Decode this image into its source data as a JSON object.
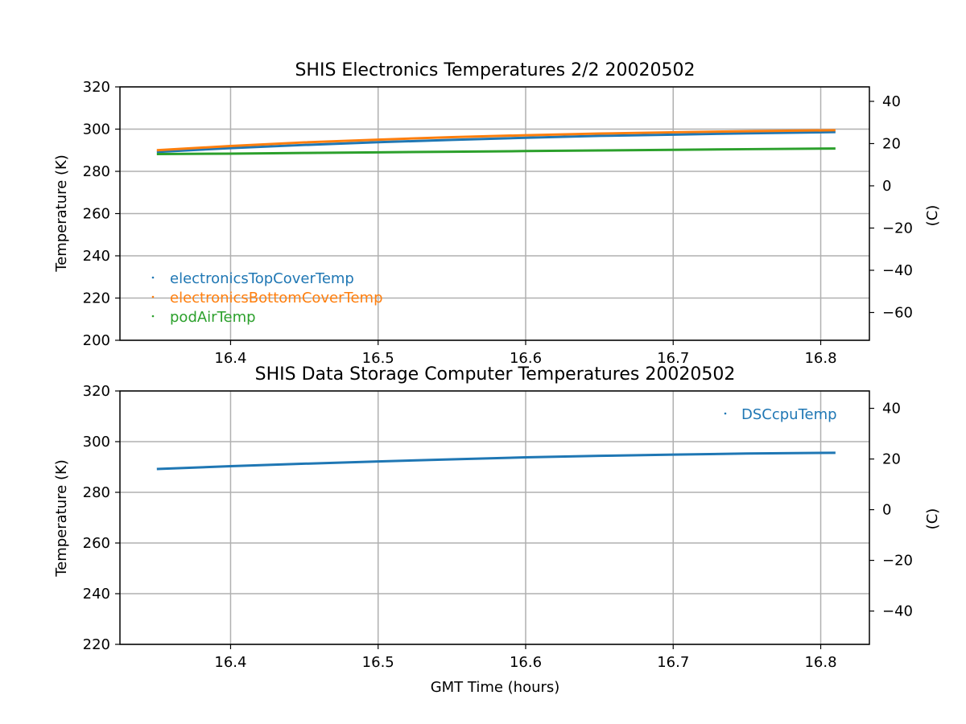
{
  "chart_data": [
    {
      "type": "line",
      "title": "SHIS Electronics Temperatures 2/2 20020502",
      "xlabel": "",
      "ylabel": "Temperature (K)",
      "y2label": "(C)",
      "xlim": [
        16.325,
        16.833
      ],
      "ylim": [
        200,
        320
      ],
      "xticks": [
        "16.4",
        "16.5",
        "16.6",
        "16.7",
        "16.8"
      ],
      "yticks": [
        "200",
        "220",
        "240",
        "260",
        "280",
        "300",
        "320"
      ],
      "y2ticks": [
        "−60",
        "−40",
        "−20",
        "0",
        "20",
        "40"
      ],
      "grid": true,
      "legend_position": "lower-left",
      "x": [
        16.35,
        16.4,
        16.45,
        16.5,
        16.55,
        16.6,
        16.65,
        16.7,
        16.75,
        16.81
      ],
      "series": [
        {
          "name": "electronicsTopCoverTemp",
          "color": "#1f77b4",
          "values": [
            289.2,
            291.0,
            292.5,
            293.8,
            294.9,
            295.9,
            296.8,
            297.4,
            298.0,
            298.6
          ]
        },
        {
          "name": "electronicsBottomCoverTemp",
          "color": "#ff7f0e",
          "values": [
            290.0,
            292.0,
            293.7,
            295.0,
            296.2,
            297.1,
            297.9,
            298.5,
            299.0,
            299.5
          ]
        },
        {
          "name": "podAirTemp",
          "color": "#2ca02c",
          "values": [
            288.2,
            288.4,
            288.7,
            289.0,
            289.3,
            289.6,
            289.9,
            290.2,
            290.5,
            290.8
          ]
        }
      ]
    },
    {
      "type": "line",
      "title": "SHIS Data Storage Computer Temperatures 20020502",
      "xlabel": "GMT Time (hours)",
      "ylabel": "Temperature (K)",
      "y2label": "(C)",
      "xlim": [
        16.325,
        16.833
      ],
      "ylim": [
        220,
        320
      ],
      "xticks": [
        "16.4",
        "16.5",
        "16.6",
        "16.7",
        "16.8"
      ],
      "yticks": [
        "220",
        "240",
        "260",
        "280",
        "300",
        "320"
      ],
      "y2ticks": [
        "−40",
        "−20",
        "0",
        "20",
        "40"
      ],
      "grid": true,
      "legend_position": "top-right",
      "x": [
        16.35,
        16.4,
        16.45,
        16.5,
        16.55,
        16.6,
        16.65,
        16.7,
        16.75,
        16.81
      ],
      "series": [
        {
          "name": "DSCcpuTemp",
          "color": "#1f77b4",
          "values": [
            289.2,
            290.3,
            291.3,
            292.2,
            293.0,
            293.8,
            294.4,
            294.9,
            295.3,
            295.6
          ]
        }
      ]
    }
  ]
}
